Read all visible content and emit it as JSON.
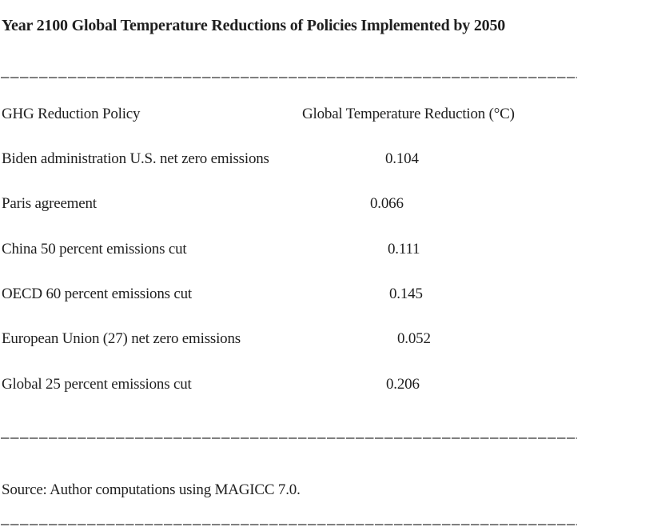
{
  "title": "Year 2100 Global Temperature Reductions of Policies Implemented by 2050",
  "table": {
    "col1_header": "GHG Reduction Policy",
    "col2_header": "Global Temperature Reduction (°C)",
    "rows": [
      {
        "policy": "Biden administration U.S. net zero emissions",
        "value": "0.104"
      },
      {
        "policy": "Paris agreement",
        "value": "0.066"
      },
      {
        "policy": "China 50 percent emissions cut",
        "value": "0.111"
      },
      {
        "policy": "OECD 60 percent emissions cut",
        "value": "0.145"
      },
      {
        "policy": "European Union (27) net zero emissions",
        "value": "0.052"
      },
      {
        "policy": "Global 25 percent emissions cut",
        "value": "0.206"
      }
    ]
  },
  "source_note": "Source: Author computations using MAGICC 7.0.",
  "chart_data": {
    "type": "table",
    "title": "Year 2100 Global Temperature Reductions of Policies Implemented by 2050",
    "columns": [
      "GHG Reduction Policy",
      "Global Temperature Reduction (°C)"
    ],
    "categories": [
      "Biden administration U.S. net zero emissions",
      "Paris agreement",
      "China 50 percent emissions cut",
      "OECD 60 percent emissions cut",
      "European Union (27) net zero emissions",
      "Global 25 percent emissions cut"
    ],
    "values": [
      0.104,
      0.066,
      0.111,
      0.145,
      0.052,
      0.206
    ]
  },
  "colors": {
    "text": "#1f1f1f",
    "divider": "#7f7f7f",
    "background": "#ffffff"
  }
}
